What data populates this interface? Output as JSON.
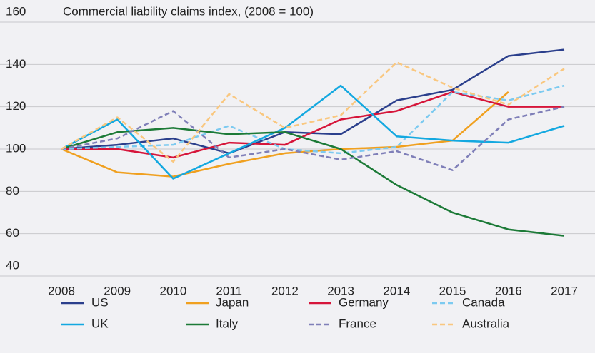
{
  "chart_data": {
    "type": "line",
    "title": "Commercial liability claims index, (2008 = 100)",
    "categories": [
      "2008",
      "2009",
      "2010",
      "2011",
      "2012",
      "2013",
      "2014",
      "2015",
      "2016",
      "2017"
    ],
    "ylim": [
      40,
      160
    ],
    "yticks": [
      40,
      60,
      80,
      100,
      120,
      140,
      160
    ],
    "grid": true,
    "series": [
      {
        "name": "US",
        "color": "#2b3f8c",
        "dashed": false,
        "values": [
          100,
          102,
          105,
          98,
          108,
          107,
          123,
          128,
          144,
          147
        ]
      },
      {
        "name": "Japan",
        "color": "#f0a01f",
        "dashed": false,
        "values": [
          100,
          89,
          87,
          93,
          98,
          100,
          101,
          104,
          127,
          null
        ]
      },
      {
        "name": "Germany",
        "color": "#d6153a",
        "dashed": false,
        "values": [
          100,
          100,
          96,
          103,
          102,
          114,
          118,
          127,
          120,
          120
        ]
      },
      {
        "name": "Canada",
        "color": "#7ccaf0",
        "dashed": true,
        "values": [
          100,
          101,
          102,
          111,
          100,
          98,
          101,
          127,
          123,
          130
        ]
      },
      {
        "name": "UK",
        "color": "#13a8e0",
        "dashed": false,
        "values": [
          100,
          114,
          86,
          98,
          110,
          130,
          106,
          104,
          103,
          111
        ]
      },
      {
        "name": "Italy",
        "color": "#1c7a37",
        "dashed": false,
        "values": [
          100,
          108,
          110,
          107,
          108,
          100,
          83,
          70,
          62,
          59
        ]
      },
      {
        "name": "France",
        "color": "#7f7fb8",
        "dashed": true,
        "values": [
          100,
          105,
          118,
          96,
          100,
          95,
          99,
          90,
          114,
          120
        ]
      },
      {
        "name": "Australia",
        "color": "#f9c77f",
        "dashed": true,
        "values": [
          100,
          115,
          94,
          126,
          110,
          116,
          141,
          129,
          121,
          138
        ]
      }
    ]
  }
}
